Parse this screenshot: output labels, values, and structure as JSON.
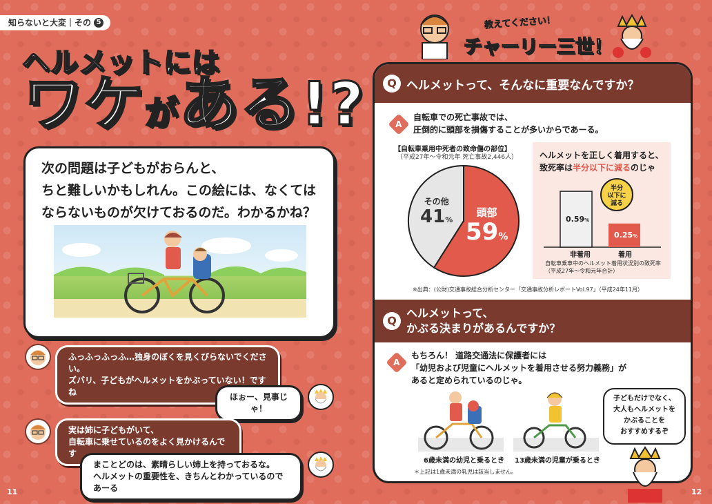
{
  "header_tag": {
    "text": "知らないと大変｜その",
    "num": "5"
  },
  "title": {
    "line1": "ヘルメットには",
    "big1": "ワケ",
    "small": "が",
    "big2": "ある!?"
  },
  "question": {
    "lines": [
      "次の問題は子どもがおらんと、",
      "ちと難しいかもしれん。この絵には、なくては",
      "ならないものが欠けておるのだ。わかるかね？"
    ]
  },
  "dialogue": [
    {
      "speaker": "doctor",
      "lines": [
        "ふっふっふっふ…独身のぼくを見くびらないでください。",
        "ズバリ、子どもがヘルメットをかぶっていない！ですね"
      ]
    },
    {
      "speaker": "king",
      "lines": [
        "ほぉー、見事じゃ！"
      ]
    },
    {
      "speaker": "doctor",
      "lines": [
        "実は姉に子どもがいて、",
        "自転車に乗せているのをよく見かけるんです"
      ]
    },
    {
      "speaker": "king",
      "lines": [
        "まことどのは、素晴らしい姉上を持っておるな。",
        "ヘルメットの重要性を、きちんとわかっているのであーる"
      ]
    }
  ],
  "page_left": "11",
  "page_right": "12",
  "teacher": {
    "small": "教えてください！",
    "big": "チャーリー三世！"
  },
  "q1": {
    "icon": "Q",
    "question": "ヘルメットって、そんなに重要なんですか？",
    "answer_icon": "A",
    "answer_lines": [
      "自転車での死亡事故では、",
      "圧倒的に頭部を損傷することが多いからであーる。"
    ]
  },
  "pie": {
    "title": "【自転車乗用中死者の致命傷の部位】",
    "sub": "（平成27年～令和元年 死亡事故2,446人）",
    "head_label": "頭部",
    "head_value": "59",
    "other_label": "その他",
    "other_value": "41",
    "unit": "%"
  },
  "stats": {
    "line1": "ヘルメットを正しく着用すると、",
    "line2_pre": "致死率は",
    "line2_highlight": "半分以下に減る",
    "line2_post": "のじゃ",
    "badge": [
      "半分",
      "以下に",
      "減る"
    ],
    "bar_no": {
      "value": "0.59",
      "label": "非着用"
    },
    "bar_yes": {
      "value": "0.25",
      "label": "着用"
    },
    "unit": "%",
    "note1": "自転車乗車中のヘルメット着用状況別の致死率",
    "note2": "（平成27年～令和元年合計）"
  },
  "source": "※出典：(公財)交通事故総合分析センター「交通事故分析レポートVol.97」（平成24年11月）",
  "q2": {
    "icon": "Q",
    "question_lines": [
      "ヘルメットって、",
      "かぶる決まりがあるんですか？"
    ],
    "answer_icon": "A",
    "answer_lines": [
      "もちろん！ 道路交通法に保護者には",
      "「幼児および児童にヘルメットを着用させる努力義務」が",
      "あると定められているのじゃ。"
    ]
  },
  "captions": {
    "left": "6歳未満の幼児と乗るとき",
    "right": "13歳未満の児童が乗るとき",
    "note": "＊上記は1歳未満の乳児は該当しません。"
  },
  "speech": [
    "子どもだけでなく、",
    "大人もヘルメットを",
    "かぶることを",
    "おすすめするぞ"
  ],
  "chart_data": [
    {
      "type": "pie",
      "title": "【自転車乗用中死者の致命傷の部位】",
      "subtitle": "（平成27年～令和元年 死亡事故2,446人）",
      "categories": [
        "頭部",
        "その他"
      ],
      "values": [
        59,
        41
      ],
      "unit": "%"
    },
    {
      "type": "bar",
      "categories": [
        "非着用",
        "着用"
      ],
      "values": [
        0.59,
        0.25
      ],
      "unit": "%"
    }
  ],
  "colors": {
    "bg": "#e06d5b",
    "brown": "#7a3a2e",
    "red": "#e15a4c",
    "pink": "#fbe8e2",
    "gray": "#dcdcdc"
  }
}
